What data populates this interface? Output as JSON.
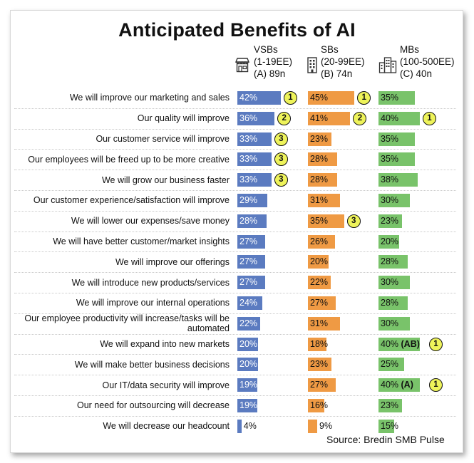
{
  "chart_data": {
    "type": "bar",
    "orientation": "horizontal",
    "title": "Anticipated Benefits of AI",
    "categories": [
      "We will improve our marketing and sales",
      "Our quality will improve",
      "Our customer service will improve",
      "Our employees will be freed up to be more creative",
      "We will grow our business faster",
      "Our customer experience/satisfaction will improve",
      "We will lower our expenses/save money",
      "We will have better customer/market insights",
      "We will improve our offerings",
      "We will introduce new products/services",
      "We will improve our internal operations",
      "Our employee productivity will increase/tasks will be automated",
      "We will expand into new markets",
      "We will make better business decisions",
      "Our IT/data security will improve",
      "Our need for outsourcing will decrease",
      "We will decrease our headcount"
    ],
    "series": [
      {
        "name": "VSBs",
        "header": [
          "VSBs",
          "(1-19EE)",
          "(A) 89n"
        ],
        "color": "#5b7bc0",
        "icon": "storefront-icon",
        "values": [
          42,
          36,
          33,
          33,
          33,
          29,
          28,
          27,
          27,
          27,
          24,
          22,
          20,
          20,
          19,
          19,
          4
        ],
        "labels": [
          "42%",
          "36%",
          "33%",
          "33%",
          "33%",
          "29%",
          "28%",
          "27%",
          "27%",
          "27%",
          "24%",
          "22%",
          "20%",
          "20%",
          "19%",
          "19%",
          "4%"
        ],
        "ranks": [
          "1",
          "2",
          "3",
          "3",
          "3",
          null,
          null,
          null,
          null,
          null,
          null,
          null,
          null,
          null,
          null,
          null,
          null
        ],
        "sig": [
          null,
          null,
          null,
          null,
          null,
          null,
          null,
          null,
          null,
          null,
          null,
          null,
          null,
          null,
          null,
          null,
          null
        ]
      },
      {
        "name": "SBs",
        "header": [
          "SBs",
          "(20-99EE)",
          "(B) 74n"
        ],
        "color": "#ef9a44",
        "icon": "office-building-icon",
        "values": [
          45,
          41,
          23,
          28,
          28,
          31,
          35,
          26,
          20,
          22,
          27,
          31,
          18,
          23,
          27,
          16,
          9
        ],
        "labels": [
          "45%",
          "41%",
          "23%",
          "28%",
          "28%",
          "31%",
          "35%",
          "26%",
          "20%",
          "22%",
          "27%",
          "31%",
          "18%",
          "23%",
          "27%",
          "16%",
          "9%"
        ],
        "ranks": [
          "1",
          "2",
          null,
          null,
          null,
          null,
          "3",
          null,
          null,
          null,
          null,
          null,
          null,
          null,
          null,
          null,
          null
        ],
        "sig": [
          null,
          null,
          null,
          null,
          null,
          null,
          null,
          null,
          null,
          null,
          null,
          null,
          null,
          null,
          null,
          null,
          null
        ]
      },
      {
        "name": "MBs",
        "header": [
          "MBs",
          "(100-500EE)",
          "(C) 40n"
        ],
        "color": "#79c36a",
        "icon": "city-buildings-icon",
        "values": [
          35,
          40,
          35,
          35,
          38,
          30,
          23,
          20,
          28,
          30,
          28,
          30,
          40,
          25,
          40,
          23,
          15
        ],
        "labels": [
          "35%",
          "40%",
          "35%",
          "35%",
          "38%",
          "30%",
          "23%",
          "20%",
          "28%",
          "30%",
          "28%",
          "30%",
          "40%",
          "25%",
          "40%",
          "23%",
          "15%"
        ],
        "ranks": [
          null,
          "1",
          null,
          null,
          null,
          null,
          null,
          null,
          null,
          null,
          null,
          null,
          "1",
          null,
          "1",
          null,
          null
        ],
        "sig": [
          null,
          null,
          null,
          null,
          null,
          null,
          null,
          null,
          null,
          null,
          null,
          null,
          "(AB)",
          null,
          "(A)",
          null,
          null
        ]
      }
    ],
    "xlim": [
      0,
      100
    ],
    "grid": false,
    "legend": "none",
    "source": "Source: Bredin SMB Pulse"
  }
}
